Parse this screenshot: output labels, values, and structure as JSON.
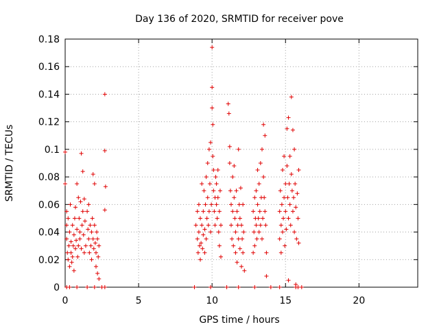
{
  "chart_data": {
    "type": "scatter",
    "title": "Day 136 of 2020, SRMTID for receiver pove",
    "xlabel": "GPS time / hours",
    "ylabel": "SRMTID / TECUs",
    "xlim": [
      0,
      24
    ],
    "ylim": [
      0,
      0.18
    ],
    "x_ticks": [
      0,
      5,
      10,
      15,
      20
    ],
    "x_tick_labels": [
      "0",
      "5",
      "10",
      "15",
      "20"
    ],
    "y_ticks": [
      0,
      0.02,
      0.04,
      0.06,
      0.08,
      0.1,
      0.12,
      0.14,
      0.16,
      0.18
    ],
    "y_tick_labels": [
      "0",
      "0.02",
      "0.04",
      "0.06",
      "0.08",
      "0.1",
      "0.12",
      "0.14",
      "0.16",
      "0.18"
    ],
    "grid": true,
    "marker": "plus",
    "color": "#e00000",
    "series": [
      {
        "name": "SRMTID",
        "points": [
          [
            0.0,
            0.098
          ],
          [
            0.0,
            0.075
          ],
          [
            0.1,
            0.055
          ],
          [
            0.1,
            0.045
          ],
          [
            0.1,
            0.035
          ],
          [
            0.15,
            0.025
          ],
          [
            0.2,
            0.02
          ],
          [
            0.2,
            0.05
          ],
          [
            0.25,
            0.03
          ],
          [
            0.3,
            0.015
          ],
          [
            0.3,
            0.04
          ],
          [
            0.35,
            0.06
          ],
          [
            0.4,
            0.025
          ],
          [
            0.4,
            0.033
          ],
          [
            0.45,
            0.018
          ],
          [
            0.5,
            0.045
          ],
          [
            0.5,
            0.022
          ],
          [
            0.55,
            0.03
          ],
          [
            0.6,
            0.038
          ],
          [
            0.6,
            0.012
          ],
          [
            0.65,
            0.05
          ],
          [
            0.7,
            0.028
          ],
          [
            0.7,
            0.058
          ],
          [
            0.75,
            0.034
          ],
          [
            0.8,
            0.075
          ],
          [
            0.8,
            0.042
          ],
          [
            0.85,
            0.022
          ],
          [
            0.9,
            0.065
          ],
          [
            0.9,
            0.03
          ],
          [
            0.95,
            0.05
          ],
          [
            1.0,
            0.04
          ],
          [
            1.0,
            0.035
          ],
          [
            1.05,
            0.062
          ],
          [
            1.1,
            0.028
          ],
          [
            1.1,
            0.097
          ],
          [
            1.15,
            0.045
          ],
          [
            1.2,
            0.084
          ],
          [
            1.2,
            0.055
          ],
          [
            1.25,
            0.038
          ],
          [
            1.3,
            0.025
          ],
          [
            1.3,
            0.064
          ],
          [
            1.35,
            0.048
          ],
          [
            1.4,
            0.03
          ],
          [
            1.5,
            0.055
          ],
          [
            1.55,
            0.042
          ],
          [
            1.6,
            0.035
          ],
          [
            1.6,
            0.06
          ],
          [
            1.65,
            0.025
          ],
          [
            1.7,
            0.045
          ],
          [
            1.75,
            0.03
          ],
          [
            1.8,
            0.04
          ],
          [
            1.8,
            0.02
          ],
          [
            1.85,
            0.05
          ],
          [
            1.9,
            0.035
          ],
          [
            1.9,
            0.082
          ],
          [
            1.95,
            0.028
          ],
          [
            2.0,
            0.045
          ],
          [
            2.0,
            0.075
          ],
          [
            2.05,
            0.032
          ],
          [
            2.1,
            0.025
          ],
          [
            2.1,
            0.015
          ],
          [
            2.15,
            0.04
          ],
          [
            2.2,
            0.035
          ],
          [
            2.2,
            0.01
          ],
          [
            2.25,
            0.022
          ],
          [
            2.3,
            0.03
          ],
          [
            2.3,
            0.006
          ],
          [
            2.7,
            0.14
          ],
          [
            2.7,
            0.099
          ],
          [
            2.75,
            0.073
          ],
          [
            2.7,
            0.056
          ],
          [
            8.9,
            0.045
          ],
          [
            9.0,
            0.055
          ],
          [
            9.0,
            0.035
          ],
          [
            9.05,
            0.025
          ],
          [
            9.1,
            0.04
          ],
          [
            9.1,
            0.06
          ],
          [
            9.15,
            0.03
          ],
          [
            9.2,
            0.05
          ],
          [
            9.2,
            0.02
          ],
          [
            9.25,
            0.032
          ],
          [
            9.3,
            0.075
          ],
          [
            9.3,
            0.045
          ],
          [
            9.35,
            0.028
          ],
          [
            9.4,
            0.055
          ],
          [
            9.4,
            0.038
          ],
          [
            9.45,
            0.07
          ],
          [
            9.5,
            0.042
          ],
          [
            9.5,
            0.025
          ],
          [
            9.55,
            0.06
          ],
          [
            9.6,
            0.08
          ],
          [
            9.6,
            0.035
          ],
          [
            9.65,
            0.05
          ],
          [
            9.7,
            0.09
          ],
          [
            9.7,
            0.065
          ],
          [
            9.75,
            0.045
          ],
          [
            9.8,
            0.1
          ],
          [
            9.8,
            0.055
          ],
          [
            9.85,
            0.075
          ],
          [
            9.9,
            0.105
          ],
          [
            9.9,
            0.04
          ],
          [
            9.95,
            0.06
          ],
          [
            10.0,
            0.174
          ],
          [
            10.0,
            0.145
          ],
          [
            10.0,
            0.13
          ],
          [
            10.05,
            0.118
          ],
          [
            10.05,
            0.095
          ],
          [
            10.1,
            0.085
          ],
          [
            10.1,
            0.07
          ],
          [
            10.15,
            0.055
          ],
          [
            10.2,
            0.065
          ],
          [
            10.2,
            0.045
          ],
          [
            10.25,
            0.08
          ],
          [
            10.3,
            0.06
          ],
          [
            10.3,
            0.075
          ],
          [
            10.35,
            0.05
          ],
          [
            10.4,
            0.065
          ],
          [
            10.4,
            0.085
          ],
          [
            10.45,
            0.04
          ],
          [
            10.5,
            0.055
          ],
          [
            10.5,
            0.03
          ],
          [
            10.55,
            0.07
          ],
          [
            10.6,
            0.045
          ],
          [
            10.6,
            0.022
          ],
          [
            11.1,
            0.133
          ],
          [
            11.15,
            0.126
          ],
          [
            11.2,
            0.102
          ],
          [
            11.2,
            0.09
          ],
          [
            11.25,
            0.07
          ],
          [
            11.3,
            0.06
          ],
          [
            11.3,
            0.045
          ],
          [
            11.35,
            0.035
          ],
          [
            11.4,
            0.055
          ],
          [
            11.4,
            0.08
          ],
          [
            11.45,
            0.03
          ],
          [
            11.5,
            0.065
          ],
          [
            11.5,
            0.088
          ],
          [
            11.55,
            0.05
          ],
          [
            11.6,
            0.04
          ],
          [
            11.6,
            0.025
          ],
          [
            11.65,
            0.07
          ],
          [
            11.7,
            0.055
          ],
          [
            11.7,
            0.018
          ],
          [
            11.75,
            0.045
          ],
          [
            11.8,
            0.1
          ],
          [
            11.8,
            0.035
          ],
          [
            11.85,
            0.06
          ],
          [
            11.9,
            0.05
          ],
          [
            11.9,
            0.028
          ],
          [
            11.95,
            0.072
          ],
          [
            12.0,
            0.045
          ],
          [
            12.0,
            0.015
          ],
          [
            12.05,
            0.035
          ],
          [
            12.1,
            0.06
          ],
          [
            12.1,
            0.025
          ],
          [
            12.15,
            0.04
          ],
          [
            12.2,
            0.012
          ],
          [
            12.8,
            0.025
          ],
          [
            12.8,
            0.055
          ],
          [
            12.85,
            0.04
          ],
          [
            12.9,
            0.065
          ],
          [
            12.9,
            0.03
          ],
          [
            12.95,
            0.05
          ],
          [
            13.0,
            0.07
          ],
          [
            13.0,
            0.045
          ],
          [
            13.05,
            0.035
          ],
          [
            13.1,
            0.06
          ],
          [
            13.1,
            0.085
          ],
          [
            13.15,
            0.05
          ],
          [
            13.2,
            0.04
          ],
          [
            13.2,
            0.075
          ],
          [
            13.25,
            0.055
          ],
          [
            13.3,
            0.09
          ],
          [
            13.3,
            0.045
          ],
          [
            13.35,
            0.065
          ],
          [
            13.4,
            0.1
          ],
          [
            13.4,
            0.035
          ],
          [
            13.45,
            0.05
          ],
          [
            13.5,
            0.08
          ],
          [
            13.5,
            0.118
          ],
          [
            13.55,
            0.065
          ],
          [
            13.6,
            0.055
          ],
          [
            13.6,
            0.11
          ],
          [
            13.65,
            0.045
          ],
          [
            13.7,
            0.025
          ],
          [
            13.7,
            0.008
          ],
          [
            14.6,
            0.055
          ],
          [
            14.6,
            0.035
          ],
          [
            14.65,
            0.07
          ],
          [
            14.7,
            0.045
          ],
          [
            14.7,
            0.025
          ],
          [
            14.75,
            0.06
          ],
          [
            14.8,
            0.085
          ],
          [
            14.8,
            0.04
          ],
          [
            14.85,
            0.05
          ],
          [
            14.9,
            0.095
          ],
          [
            14.9,
            0.065
          ],
          [
            14.95,
            0.03
          ],
          [
            15.0,
            0.075
          ],
          [
            15.0,
            0.055
          ],
          [
            15.05,
            0.042
          ],
          [
            15.1,
            0.115
          ],
          [
            15.1,
            0.088
          ],
          [
            15.15,
            0.065
          ],
          [
            15.2,
            0.123
          ],
          [
            15.2,
            0.05
          ],
          [
            15.25,
            0.075
          ],
          [
            15.3,
            0.095
          ],
          [
            15.3,
            0.06
          ],
          [
            15.35,
            0.045
          ],
          [
            15.4,
            0.138
          ],
          [
            15.4,
            0.082
          ],
          [
            15.45,
            0.07
          ],
          [
            15.5,
            0.114
          ],
          [
            15.5,
            0.055
          ],
          [
            15.55,
            0.065
          ],
          [
            15.6,
            0.1
          ],
          [
            15.6,
            0.04
          ],
          [
            15.65,
            0.075
          ],
          [
            15.7,
            0.058
          ],
          [
            15.75,
            0.035
          ],
          [
            15.8,
            0.068
          ],
          [
            15.85,
            0.05
          ],
          [
            15.9,
            0.085
          ],
          [
            15.9,
            0.032
          ],
          [
            15.2,
            0.005
          ],
          [
            15.7,
            0.002
          ],
          [
            0.1,
            0.0
          ],
          [
            0.3,
            0.0
          ],
          [
            0.8,
            0.0
          ],
          [
            1.5,
            0.0
          ],
          [
            2.0,
            0.0
          ],
          [
            2.5,
            0.0
          ],
          [
            2.7,
            0.0
          ],
          [
            8.8,
            0.0
          ],
          [
            9.9,
            0.0
          ],
          [
            11.0,
            0.0
          ],
          [
            11.8,
            0.0
          ],
          [
            12.9,
            0.0
          ],
          [
            14.0,
            0.0
          ],
          [
            14.6,
            0.0
          ],
          [
            15.7,
            0.0
          ],
          [
            15.85,
            0.0
          ],
          [
            16.1,
            0.0
          ]
        ]
      }
    ]
  }
}
